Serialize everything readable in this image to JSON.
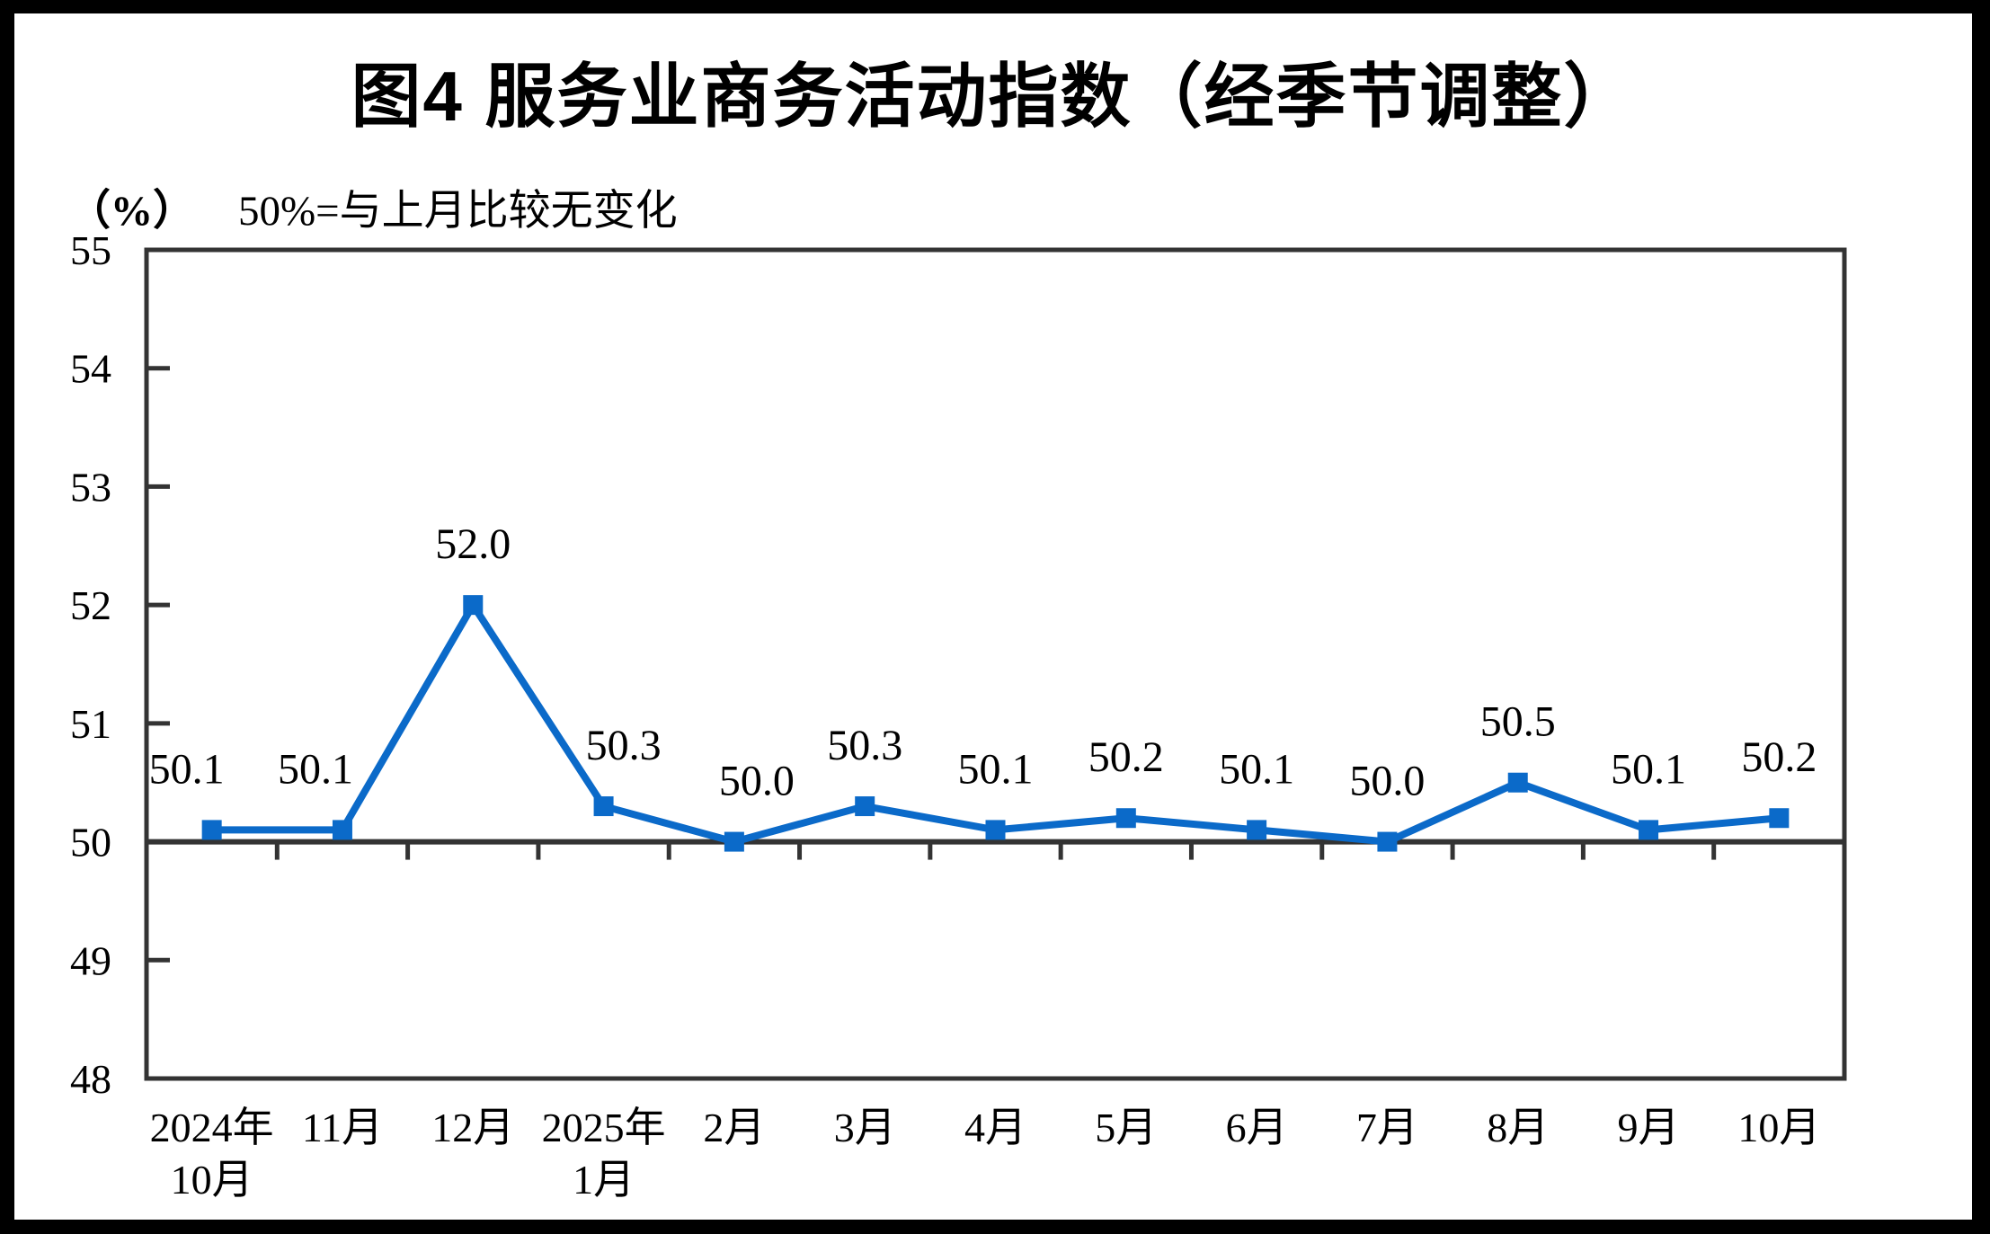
{
  "title": "图4  服务业商务活动指数（经季节调整）",
  "subtitle": {
    "unit": "（%）",
    "note": "50%=与上月比较无变化"
  },
  "colors": {
    "line": "#0b6ac9",
    "axis": "#333333",
    "text": "#000000",
    "background": "#ffffff",
    "frame": "#000000"
  },
  "chart_data": {
    "type": "line",
    "series": [
      {
        "name": "服务业商务活动指数",
        "values": [
          50.1,
          50.1,
          52.0,
          50.3,
          50.0,
          50.3,
          50.1,
          50.2,
          50.1,
          50.0,
          50.5,
          50.1,
          50.2
        ]
      }
    ],
    "categories": [
      [
        "2024年",
        "10月"
      ],
      [
        "11月"
      ],
      [
        "12月"
      ],
      [
        "2025年",
        "1月"
      ],
      [
        "2月"
      ],
      [
        "3月"
      ],
      [
        "4月"
      ],
      [
        "5月"
      ],
      [
        "6月"
      ],
      [
        "7月"
      ],
      [
        "8月"
      ],
      [
        "9月"
      ],
      [
        "10月"
      ]
    ],
    "data_labels": [
      "50.1",
      "50.1",
      "52.0",
      "50.3",
      "50.0",
      "50.3",
      "50.1",
      "50.2",
      "50.1",
      "50.0",
      "50.5",
      "50.1",
      "50.2"
    ],
    "ylim": [
      48,
      55
    ],
    "yticks": [
      48,
      49,
      50,
      51,
      52,
      53,
      54,
      55
    ],
    "reference_line": 50,
    "grid": false,
    "legend_position": "none",
    "marker": "square"
  }
}
